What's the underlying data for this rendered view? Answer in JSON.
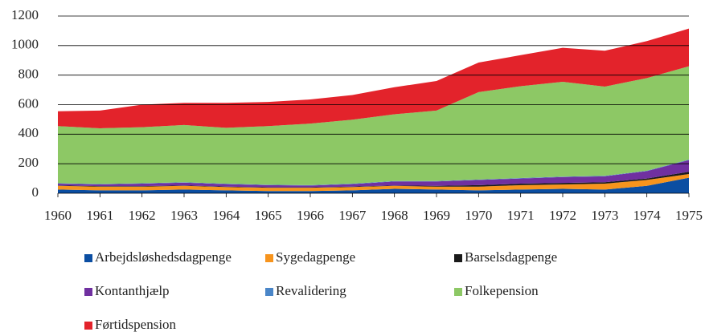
{
  "chart_data": {
    "type": "stacked_area",
    "x": [
      1960,
      1961,
      1962,
      1963,
      1964,
      1965,
      1966,
      1967,
      1968,
      1969,
      1970,
      1971,
      1972,
      1973,
      1974,
      1975
    ],
    "xlim": [
      1960,
      1975
    ],
    "xticks": [
      1960,
      1961,
      1962,
      1963,
      1964,
      1965,
      1966,
      1967,
      1968,
      1969,
      1970,
      1971,
      1972,
      1973,
      1974,
      1975
    ],
    "ylim": [
      0,
      1200
    ],
    "yticks": [
      0,
      200,
      400,
      600,
      800,
      1000,
      1200
    ],
    "grid": true,
    "legend": "bottom",
    "series": [
      {
        "name": "Arbejdsløshedsdagpenge",
        "color": "#0b4ea2",
        "values": [
          25,
          20,
          20,
          25,
          20,
          15,
          15,
          20,
          30,
          25,
          20,
          25,
          30,
          25,
          50,
          105
        ]
      },
      {
        "name": "Sygedagpenge",
        "color": "#f7941d",
        "values": [
          25,
          25,
          25,
          25,
          22,
          22,
          22,
          22,
          20,
          20,
          25,
          30,
          30,
          40,
          40,
          25
        ]
      },
      {
        "name": "Barselsdagpenge",
        "color": "#1a1a1a",
        "values": [
          3,
          3,
          3,
          3,
          3,
          3,
          3,
          3,
          3,
          5,
          10,
          10,
          10,
          10,
          10,
          15
        ]
      },
      {
        "name": "Kontanthjælp",
        "color": "#7030a0",
        "values": [
          12,
          12,
          17,
          19,
          17,
          15,
          12,
          17,
          27,
          30,
          35,
          35,
          40,
          40,
          50,
          80
        ]
      },
      {
        "name": "Revalidering",
        "color": "#4a86c8",
        "values": [
          3,
          3,
          3,
          3,
          3,
          3,
          3,
          3,
          3,
          3,
          3,
          3,
          3,
          3,
          3,
          3
        ]
      },
      {
        "name": "Folkepension",
        "color": "#8dc865",
        "values": [
          387,
          377,
          379,
          387,
          378,
          397,
          417,
          433,
          452,
          477,
          592,
          622,
          642,
          604,
          627,
          632
        ]
      },
      {
        "name": "Førtidspension",
        "color": "#e3232b",
        "values": [
          100,
          120,
          153,
          150,
          169,
          163,
          163,
          167,
          183,
          200,
          200,
          210,
          230,
          243,
          250,
          255
        ]
      }
    ]
  }
}
